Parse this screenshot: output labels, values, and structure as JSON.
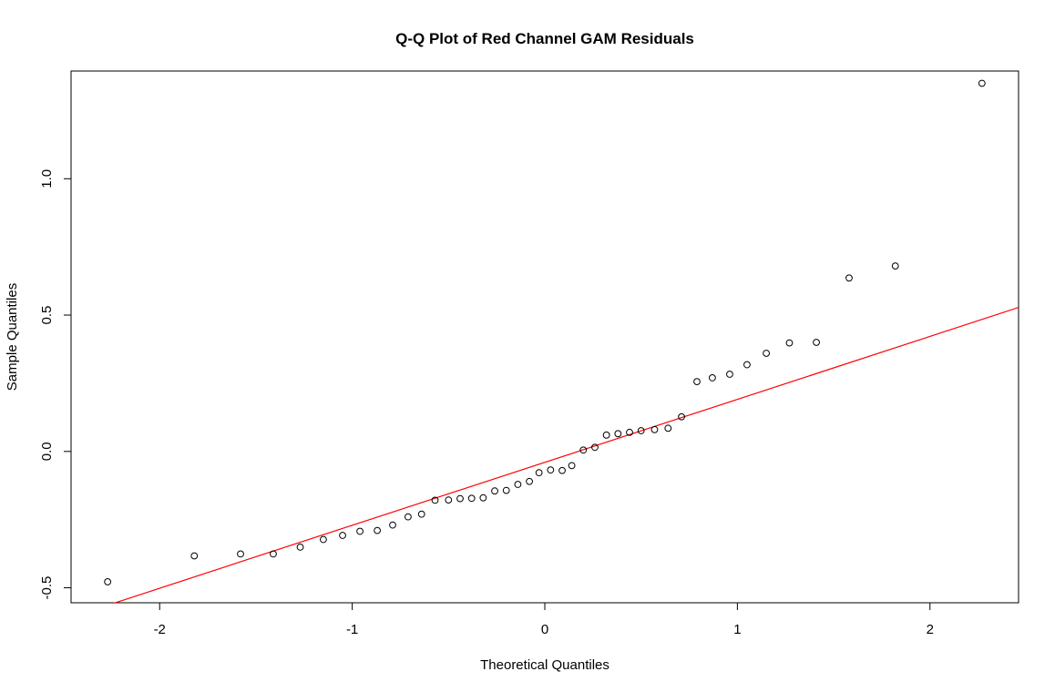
{
  "chart_data": {
    "type": "scatter",
    "title": "Q-Q Plot of Red Channel GAM Residuals",
    "xlabel": "Theoretical Quantiles",
    "ylabel": "Sample Quantiles",
    "xlim": [
      -2.46,
      2.46
    ],
    "ylim": [
      -0.555,
      1.395
    ],
    "x_ticks": [
      -2,
      -1,
      0,
      1,
      2
    ],
    "y_ticks": [
      -0.5,
      0.0,
      0.5,
      1.0
    ],
    "x_tick_labels": [
      "-2",
      "-1",
      "0",
      "1",
      "2"
    ],
    "y_tick_labels": [
      "-0.5",
      "0.0",
      "0.5",
      "1.0"
    ],
    "grid": false,
    "legend": "none",
    "point_color": "#000000",
    "line_color": "#ff0000",
    "reference_line": {
      "x": [
        -2.46,
        2.46
      ],
      "y": [
        -0.608,
        0.528
      ]
    },
    "points": {
      "x": [
        -2.27,
        -1.82,
        -1.58,
        -1.41,
        -1.27,
        -1.15,
        -1.05,
        -0.96,
        -0.87,
        -0.79,
        -0.71,
        -0.64,
        -0.57,
        -0.5,
        -0.44,
        -0.38,
        -0.32,
        -0.26,
        -0.2,
        -0.14,
        -0.08,
        -0.03,
        0.03,
        0.09,
        0.14,
        0.2,
        0.26,
        0.32,
        0.38,
        0.44,
        0.5,
        0.57,
        0.64,
        0.71,
        0.79,
        0.87,
        0.96,
        1.05,
        1.15,
        1.27,
        1.41,
        1.58,
        1.82,
        2.27
      ],
      "y": [
        -0.478,
        -0.383,
        -0.376,
        -0.376,
        -0.351,
        -0.323,
        -0.308,
        -0.293,
        -0.29,
        -0.27,
        -0.24,
        -0.23,
        -0.179,
        -0.178,
        -0.173,
        -0.172,
        -0.17,
        -0.145,
        -0.143,
        -0.121,
        -0.11,
        -0.078,
        -0.068,
        -0.07,
        -0.052,
        0.005,
        0.015,
        0.06,
        0.065,
        0.07,
        0.076,
        0.08,
        0.085,
        0.127,
        0.256,
        0.27,
        0.283,
        0.318,
        0.36,
        0.398,
        0.4,
        0.636,
        0.68,
        1.35
      ]
    }
  }
}
